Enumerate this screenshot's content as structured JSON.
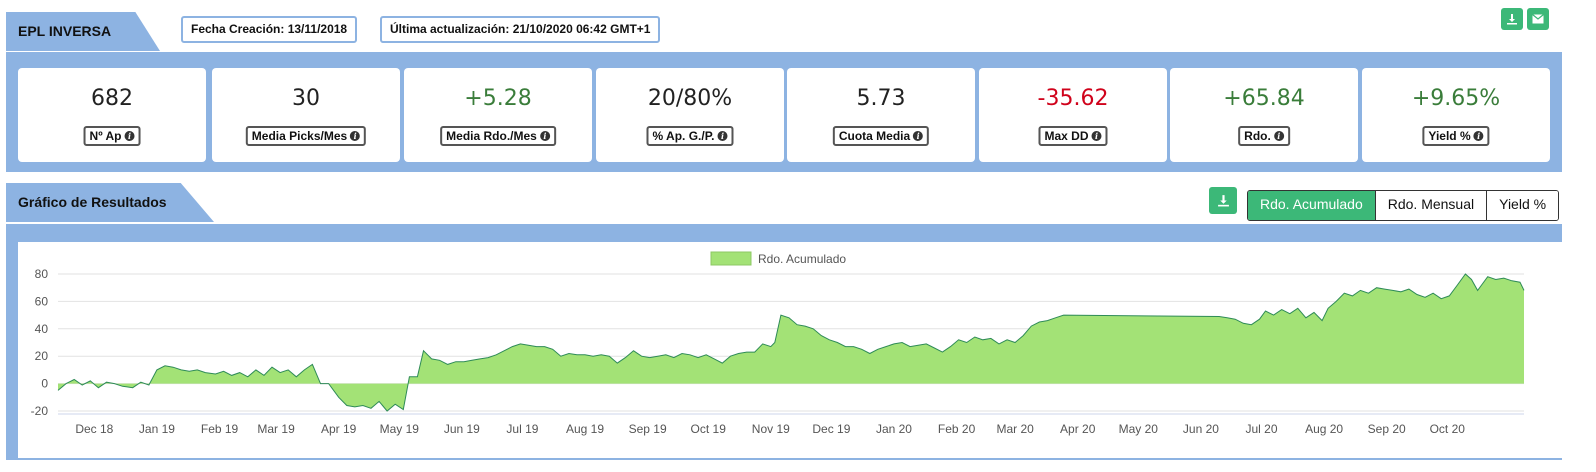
{
  "header": {
    "title": "EPL INVERSA",
    "fecha_creacion": "Fecha Creación: 13/11/2018",
    "ultima_actualizacion": "Última actualización: 21/10/2020 06:42 GMT+1"
  },
  "top_icons": [
    "download-icon",
    "envelope-icon"
  ],
  "stats": [
    {
      "value": "682",
      "label": "Nº Ap",
      "color": "#222222"
    },
    {
      "value": "30",
      "label": "Media Picks/Mes",
      "color": "#222222"
    },
    {
      "value": "+5.28",
      "label": "Media Rdo./Mes",
      "color": "#3a7d3a"
    },
    {
      "value": "20/80%",
      "label": "% Ap. G./P.",
      "color": "#222222"
    },
    {
      "value": "5.73",
      "label": "Cuota Media",
      "color": "#222222"
    },
    {
      "value": "-35.62",
      "label": "Max DD",
      "color": "#d0021b"
    },
    {
      "value": "+65.84",
      "label": "Rdo.",
      "color": "#3a7d3a"
    },
    {
      "value": "+9.65%",
      "label": "Yield %",
      "color": "#3a7d3a"
    }
  ],
  "chart_section": {
    "title": "Gráfico de Resultados",
    "tabs": [
      "Rdo. Acumulado",
      "Rdo. Mensual",
      "Yield %"
    ],
    "active_tab": "Rdo. Acumulado"
  },
  "chart_data": {
    "type": "area",
    "legend": "Rdo. Acumulado",
    "legend_position": "top-center",
    "grid": true,
    "ylim": [
      -20,
      80
    ],
    "yticks": [
      -20,
      0,
      20,
      40,
      60,
      80
    ],
    "xlim": [
      "2018-11-13",
      "2020-10-21"
    ],
    "xticks": [
      "Dec 18",
      "Jan 19",
      "Feb 19",
      "Mar 19",
      "Apr 19",
      "May 19",
      "Jun 19",
      "Jul 19",
      "Aug 19",
      "Sep 19",
      "Oct 19",
      "Nov 19",
      "Dec 19",
      "Jan 20",
      "Feb 20",
      "Mar 20",
      "Apr 20",
      "May 20",
      "Jun 20",
      "Jul 20",
      "Aug 20",
      "Sep 20",
      "Oct 20"
    ],
    "xtick_dates": [
      "2018-12-01",
      "2019-01-01",
      "2019-02-01",
      "2019-03-01",
      "2019-04-01",
      "2019-05-01",
      "2019-06-01",
      "2019-07-01",
      "2019-08-01",
      "2019-09-01",
      "2019-10-01",
      "2019-11-01",
      "2019-12-01",
      "2020-01-01",
      "2020-02-01",
      "2020-03-01",
      "2020-04-01",
      "2020-05-01",
      "2020-06-01",
      "2020-07-01",
      "2020-08-01",
      "2020-09-01",
      "2020-10-01"
    ],
    "fill_color": "#a3e276",
    "line_color": "#2e8b57",
    "points": [
      [
        "2018-11-13",
        -5
      ],
      [
        "2018-11-17",
        0
      ],
      [
        "2018-11-21",
        3
      ],
      [
        "2018-11-25",
        -1
      ],
      [
        "2018-11-29",
        2
      ],
      [
        "2018-12-03",
        -3
      ],
      [
        "2018-12-07",
        1
      ],
      [
        "2018-12-11",
        0
      ],
      [
        "2018-12-15",
        -2
      ],
      [
        "2018-12-20",
        -3
      ],
      [
        "2018-12-24",
        1
      ],
      [
        "2018-12-28",
        -1
      ],
      [
        "2019-01-01",
        10
      ],
      [
        "2019-01-05",
        13
      ],
      [
        "2019-01-09",
        12
      ],
      [
        "2019-01-13",
        10
      ],
      [
        "2019-01-17",
        9
      ],
      [
        "2019-01-21",
        10
      ],
      [
        "2019-01-25",
        8
      ],
      [
        "2019-01-30",
        7
      ],
      [
        "2019-02-03",
        9
      ],
      [
        "2019-02-07",
        6
      ],
      [
        "2019-02-11",
        8
      ],
      [
        "2019-02-15",
        5
      ],
      [
        "2019-02-19",
        10
      ],
      [
        "2019-02-23",
        6
      ],
      [
        "2019-02-27",
        12
      ],
      [
        "2019-03-03",
        8
      ],
      [
        "2019-03-07",
        10
      ],
      [
        "2019-03-11",
        5
      ],
      [
        "2019-03-15",
        10
      ],
      [
        "2019-03-19",
        14
      ],
      [
        "2019-03-23",
        0
      ],
      [
        "2019-03-27",
        0
      ],
      [
        "2019-04-01",
        -10
      ],
      [
        "2019-04-05",
        -16
      ],
      [
        "2019-04-09",
        -17
      ],
      [
        "2019-04-13",
        -16
      ],
      [
        "2019-04-17",
        -18
      ],
      [
        "2019-04-21",
        -13
      ],
      [
        "2019-04-25",
        -20
      ],
      [
        "2019-04-29",
        -15
      ],
      [
        "2019-05-03",
        -19
      ],
      [
        "2019-05-06",
        5
      ],
      [
        "2019-05-10",
        5
      ],
      [
        "2019-05-13",
        24
      ],
      [
        "2019-05-17",
        18
      ],
      [
        "2019-05-21",
        17
      ],
      [
        "2019-05-25",
        14
      ],
      [
        "2019-05-29",
        16
      ],
      [
        "2019-06-02",
        16
      ],
      [
        "2019-06-06",
        17
      ],
      [
        "2019-06-10",
        18
      ],
      [
        "2019-06-14",
        19
      ],
      [
        "2019-06-18",
        21
      ],
      [
        "2019-06-22",
        24
      ],
      [
        "2019-06-26",
        27
      ],
      [
        "2019-06-30",
        29
      ],
      [
        "2019-07-04",
        28
      ],
      [
        "2019-07-08",
        27
      ],
      [
        "2019-07-12",
        27
      ],
      [
        "2019-07-16",
        25
      ],
      [
        "2019-07-20",
        20
      ],
      [
        "2019-07-24",
        22
      ],
      [
        "2019-07-28",
        21
      ],
      [
        "2019-08-01",
        21
      ],
      [
        "2019-08-05",
        20
      ],
      [
        "2019-08-09",
        21
      ],
      [
        "2019-08-13",
        20
      ],
      [
        "2019-08-17",
        15
      ],
      [
        "2019-08-21",
        19
      ],
      [
        "2019-08-25",
        24
      ],
      [
        "2019-08-29",
        20
      ],
      [
        "2019-09-02",
        19
      ],
      [
        "2019-09-06",
        20
      ],
      [
        "2019-09-10",
        21
      ],
      [
        "2019-09-14",
        19
      ],
      [
        "2019-09-18",
        22
      ],
      [
        "2019-09-22",
        21
      ],
      [
        "2019-09-26",
        19
      ],
      [
        "2019-09-30",
        21
      ],
      [
        "2019-10-04",
        18
      ],
      [
        "2019-10-08",
        15
      ],
      [
        "2019-10-12",
        20
      ],
      [
        "2019-10-16",
        22
      ],
      [
        "2019-10-20",
        23
      ],
      [
        "2019-10-24",
        23
      ],
      [
        "2019-10-28",
        29
      ],
      [
        "2019-11-01",
        27
      ],
      [
        "2019-11-03",
        30
      ],
      [
        "2019-11-06",
        50
      ],
      [
        "2019-11-10",
        48
      ],
      [
        "2019-11-14",
        43
      ],
      [
        "2019-11-18",
        42
      ],
      [
        "2019-11-22",
        40
      ],
      [
        "2019-11-26",
        35
      ],
      [
        "2019-11-30",
        32
      ],
      [
        "2019-12-04",
        30
      ],
      [
        "2019-12-08",
        27
      ],
      [
        "2019-12-12",
        27
      ],
      [
        "2019-12-16",
        25
      ],
      [
        "2019-12-20",
        22
      ],
      [
        "2019-12-24",
        25
      ],
      [
        "2019-12-28",
        27
      ],
      [
        "2020-01-01",
        29
      ],
      [
        "2020-01-05",
        30
      ],
      [
        "2020-01-09",
        27
      ],
      [
        "2020-01-13",
        28
      ],
      [
        "2020-01-17",
        29
      ],
      [
        "2020-01-21",
        26
      ],
      [
        "2020-01-25",
        23
      ],
      [
        "2020-01-29",
        27
      ],
      [
        "2020-02-02",
        32
      ],
      [
        "2020-02-06",
        30
      ],
      [
        "2020-02-10",
        34
      ],
      [
        "2020-02-14",
        32
      ],
      [
        "2020-02-18",
        33
      ],
      [
        "2020-02-22",
        29
      ],
      [
        "2020-02-26",
        32
      ],
      [
        "2020-03-01",
        30
      ],
      [
        "2020-03-05",
        35
      ],
      [
        "2020-03-09",
        42
      ],
      [
        "2020-03-13",
        45
      ],
      [
        "2020-03-17",
        46
      ],
      [
        "2020-03-21",
        48
      ],
      [
        "2020-03-25",
        50
      ],
      [
        "2020-06-10",
        49
      ],
      [
        "2020-06-14",
        48
      ],
      [
        "2020-06-18",
        47
      ],
      [
        "2020-06-22",
        44
      ],
      [
        "2020-06-26",
        43
      ],
      [
        "2020-06-30",
        47
      ],
      [
        "2020-07-03",
        53
      ],
      [
        "2020-07-07",
        50
      ],
      [
        "2020-07-11",
        54
      ],
      [
        "2020-07-15",
        51
      ],
      [
        "2020-07-19",
        55
      ],
      [
        "2020-07-23",
        48
      ],
      [
        "2020-07-27",
        52
      ],
      [
        "2020-07-31",
        46
      ],
      [
        "2020-08-03",
        55
      ],
      [
        "2020-08-07",
        60
      ],
      [
        "2020-08-11",
        66
      ],
      [
        "2020-08-15",
        64
      ],
      [
        "2020-08-19",
        68
      ],
      [
        "2020-08-23",
        66
      ],
      [
        "2020-08-27",
        70
      ],
      [
        "2020-08-31",
        69
      ],
      [
        "2020-09-04",
        68
      ],
      [
        "2020-09-08",
        67
      ],
      [
        "2020-09-12",
        69
      ],
      [
        "2020-09-16",
        65
      ],
      [
        "2020-09-20",
        63
      ],
      [
        "2020-09-24",
        66
      ],
      [
        "2020-09-28",
        62
      ],
      [
        "2020-10-02",
        64
      ],
      [
        "2020-10-06",
        72
      ],
      [
        "2020-10-10",
        80
      ],
      [
        "2020-10-13",
        76
      ],
      [
        "2020-10-16",
        68
      ],
      [
        "2020-10-18",
        72
      ],
      [
        "2020-10-21",
        78
      ],
      [
        "2020-10-25",
        76
      ],
      [
        "2020-10-29",
        77
      ],
      [
        "2020-11-02",
        75
      ],
      [
        "2020-11-06",
        74
      ],
      [
        "2020-11-08",
        68
      ]
    ]
  }
}
